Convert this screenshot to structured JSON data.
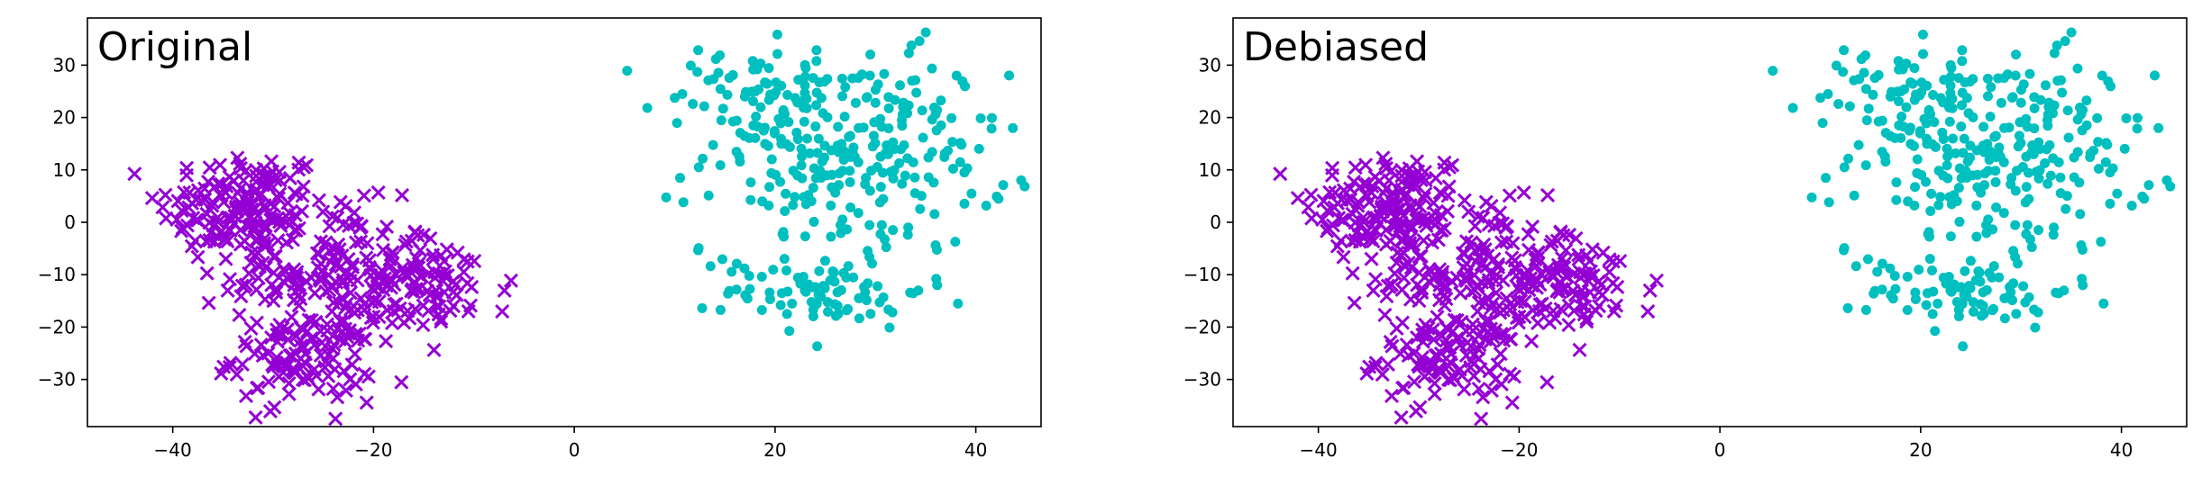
{
  "chart_data": [
    {
      "type": "scatter",
      "title": "Original",
      "xlim": [
        -48.5,
        46.5
      ],
      "ylim": [
        -39,
        39
      ],
      "xticks": [
        -40,
        -20,
        0,
        20,
        40
      ],
      "yticks": [
        -30,
        -20,
        -10,
        0,
        10,
        20,
        30
      ],
      "xtick_labels": [
        "−40",
        "−20",
        "0",
        "20",
        "40"
      ],
      "ytick_labels": [
        "−30",
        "−20",
        "−10",
        "0",
        "10",
        "20",
        "30"
      ],
      "grid": false,
      "series": [
        {
          "marker": "x",
          "color": "#9400D3",
          "clusters": [
            {
              "cx": -33,
              "cy": 3,
              "sx": 4.2,
              "sy": 5.5,
              "n": 160
            },
            {
              "cx": -24,
              "cy": -10,
              "sx": 5.0,
              "sy": 6.5,
              "n": 180
            },
            {
              "cx": -27,
              "cy": -26,
              "sx": 3.5,
              "sy": 4.0,
              "n": 110
            },
            {
              "cx": -14,
              "cy": -12,
              "sx": 4.0,
              "sy": 4.5,
              "n": 80
            }
          ]
        },
        {
          "marker": "o",
          "color": "#00BFBF",
          "clusters": [
            {
              "cx": 28,
              "cy": 13,
              "sx": 7.5,
              "sy": 9.5,
              "n": 260
            },
            {
              "cx": 18,
              "cy": 24,
              "sx": 5.0,
              "sy": 5.0,
              "n": 60
            },
            {
              "cx": 25,
              "cy": -13,
              "sx": 5.0,
              "sy": 3.5,
              "n": 80
            }
          ]
        }
      ]
    },
    {
      "type": "scatter",
      "title": "Debiased",
      "xlim": [
        -48.5,
        46.5
      ],
      "ylim": [
        -39,
        39
      ],
      "xticks": [
        -40,
        -20,
        0,
        20,
        40
      ],
      "yticks": [
        -30,
        -20,
        -10,
        0,
        10,
        20,
        30
      ],
      "xtick_labels": [
        "−40",
        "−20",
        "0",
        "20",
        "40"
      ],
      "ytick_labels": [
        "−30",
        "−20",
        "−10",
        "0",
        "10",
        "20",
        "30"
      ],
      "grid": false,
      "series": [
        {
          "marker": "x",
          "color": "#9400D3",
          "clusters": [
            {
              "cx": -33,
              "cy": 3,
              "sx": 4.2,
              "sy": 5.5,
              "n": 160
            },
            {
              "cx": -24,
              "cy": -10,
              "sx": 5.0,
              "sy": 6.5,
              "n": 180
            },
            {
              "cx": -27,
              "cy": -26,
              "sx": 3.5,
              "sy": 4.0,
              "n": 110
            },
            {
              "cx": -14,
              "cy": -12,
              "sx": 4.0,
              "sy": 4.5,
              "n": 80
            }
          ]
        },
        {
          "marker": "o",
          "color": "#00BFBF",
          "clusters": [
            {
              "cx": 28,
              "cy": 13,
              "sx": 7.5,
              "sy": 9.5,
              "n": 260
            },
            {
              "cx": 18,
              "cy": 24,
              "sx": 5.0,
              "sy": 5.0,
              "n": 60
            },
            {
              "cx": 25,
              "cy": -13,
              "sx": 5.0,
              "sy": 3.5,
              "n": 80
            }
          ]
        }
      ]
    }
  ]
}
